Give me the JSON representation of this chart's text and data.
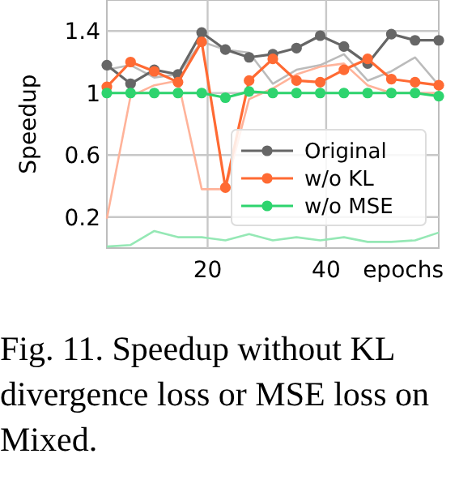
{
  "chart_data": {
    "type": "line",
    "xlabel": "epochs",
    "ylabel": "Speedup",
    "x": [
      3,
      7,
      11,
      15,
      19,
      23,
      27,
      31,
      35,
      39,
      43,
      47,
      51,
      55,
      59
    ],
    "xlim": [
      3,
      59
    ],
    "xticks": [
      20,
      40
    ],
    "ylim": [
      0,
      1.6
    ],
    "yticks": [
      0.2,
      0.6,
      1,
      1.4
    ],
    "grid": true,
    "legend": "bottom right",
    "marker": "circle",
    "series": [
      {
        "color": "#bbbbbb",
        "marker": "none",
        "values": [
          1.15,
          1.18,
          1.1,
          1.12,
          1.33,
          1.28,
          1.26,
          1.06,
          1.15,
          1.18,
          1.25,
          1.08,
          1.14,
          1.23,
          1.05
        ]
      },
      {
        "color": "#ffb39a",
        "marker": "none",
        "values": [
          0.19,
          0.98,
          1.05,
          1.08,
          0.38,
          0.38,
          0.96,
          1.03,
          1.12,
          1.17,
          1.19,
          1.05,
          1.0,
          1.0,
          1.0
        ]
      },
      {
        "color": "#95e8b5",
        "marker": "none",
        "values": [
          0.01,
          0.02,
          0.11,
          0.07,
          0.07,
          0.05,
          0.09,
          0.05,
          0.07,
          0.05,
          0.07,
          0.04,
          0.04,
          0.05,
          0.1
        ]
      },
      {
        "name": "Original",
        "color": "#666666",
        "values": [
          1.18,
          1.06,
          1.15,
          1.12,
          1.39,
          1.28,
          1.23,
          1.25,
          1.29,
          1.37,
          1.3,
          1.19,
          1.38,
          1.34,
          1.34
        ]
      },
      {
        "name": "w/o KL",
        "color": "#ff6a33",
        "values": [
          1.04,
          1.2,
          1.14,
          1.07,
          1.33,
          0.39,
          1.08,
          1.22,
          1.08,
          1.07,
          1.15,
          1.22,
          1.09,
          1.07,
          1.05
        ]
      },
      {
        "name": "w/o MSE",
        "color": "#2ed46e",
        "values": [
          1.0,
          1.0,
          1.0,
          1.0,
          1.0,
          0.97,
          1.01,
          1.0,
          1.0,
          1.0,
          1.0,
          1.0,
          1.0,
          1.0,
          0.98
        ]
      }
    ],
    "annotations": [
      "Fig. 11.  Speedup without KL divergence loss or MSE loss on Mixed."
    ]
  }
}
